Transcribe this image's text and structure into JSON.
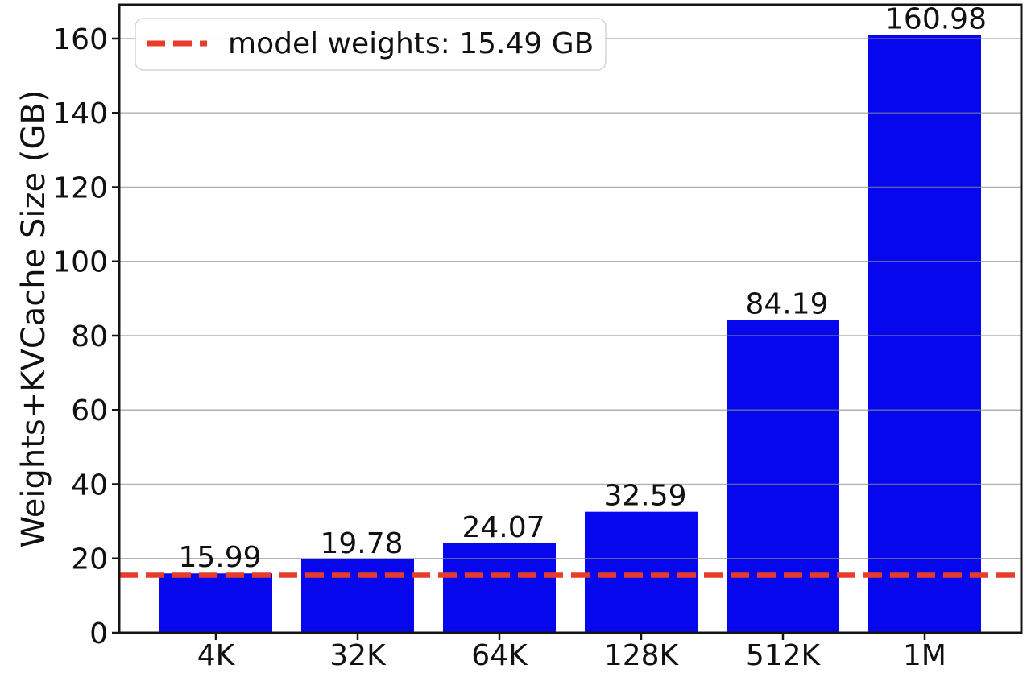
{
  "chart_data": {
    "type": "bar",
    "title": "",
    "categories": [
      "4K",
      "32K",
      "64K",
      "128K",
      "512K",
      "1M"
    ],
    "values": [
      15.99,
      19.78,
      24.07,
      32.59,
      84.19,
      160.98
    ],
    "bar_labels": [
      "15.99",
      "19.78",
      "24.07",
      "32.59",
      "84.19",
      "160.98"
    ],
    "xlabel": "",
    "ylabel": "Weights+KVCache Size (GB)",
    "ylim": [
      0,
      169.1
    ],
    "yticks": [
      0,
      20,
      40,
      60,
      80,
      100,
      120,
      140,
      160
    ],
    "ytick_labels": [
      "0",
      "20",
      "40",
      "60",
      "80",
      "100",
      "120",
      "140",
      "160"
    ],
    "grid": true,
    "grid_color": "#b0b0b0",
    "bar_color": "#0707ee",
    "reference_line": {
      "value": 15.49,
      "label": "model weights: 15.49 GB",
      "color": "#e73b2c",
      "style": "dashed"
    },
    "legend": {
      "position": "upper left",
      "entries": [
        "model weights: 15.49 GB"
      ]
    }
  }
}
